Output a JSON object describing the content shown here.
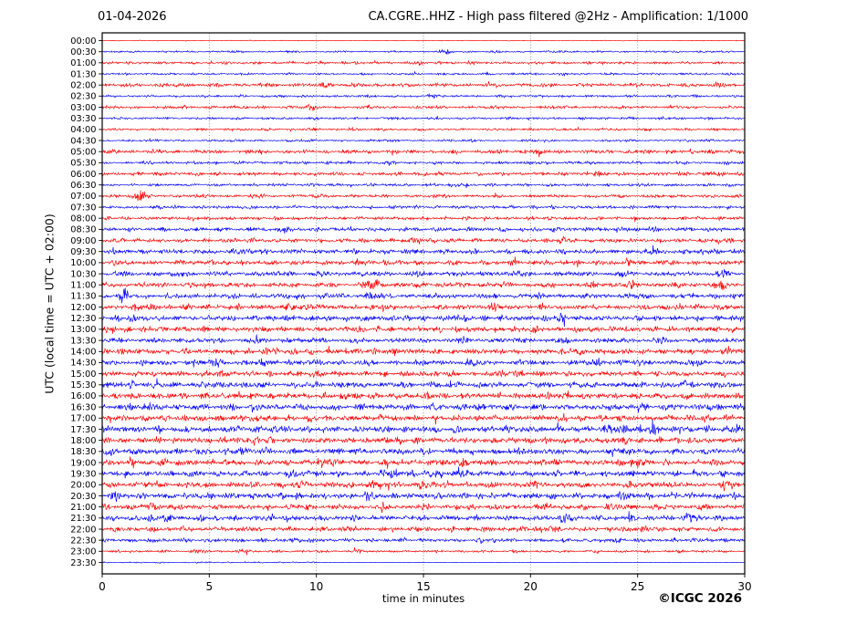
{
  "figure": {
    "date_title": "01-04-2026",
    "main_title": "CA.CGRE..HHZ - High pass filtered @2Hz - Amplification: 1/1000",
    "y_axis_label": "UTC (local time = UTC + 02:00)",
    "x_axis_label": "time in minutes",
    "copyright": "©ICGC 2026"
  },
  "chart_data": {
    "type": "line",
    "subtype": "helicorder-seismogram",
    "title": "CA.CGRE..HHZ - High pass filtered @2Hz - Amplification: 1/1000",
    "date": "01-04-2026",
    "xlabel": "time in minutes",
    "ylabel": "UTC (local time = UTC + 02:00)",
    "xlim": [
      0,
      30
    ],
    "x_ticks": [
      0,
      5,
      10,
      15,
      20,
      25,
      30
    ],
    "grid": "vertical dotted gridlines at 5-minute intervals",
    "legend": "none",
    "trace_colors": {
      "on_the_hour": "#ff0000",
      "on_the_half_hour": "#0000ff"
    },
    "row_count": 48,
    "minutes_per_row": 30,
    "waveform_note": "random band-limited seismic noise; base_amplitude_px = half-height of noise band in px; bursts = [center_minute, sigma_minutes, gain]",
    "traces": [
      {
        "label": "00:00",
        "color": "#ff0000",
        "amp": 0.25,
        "bursts": []
      },
      {
        "label": "00:30",
        "color": "#0000ff",
        "amp": 0.7,
        "bursts": [
          [
            16,
            0.3,
            2.5
          ],
          [
            21.5,
            0.2,
            2
          ]
        ]
      },
      {
        "label": "01:00",
        "color": "#ff0000",
        "amp": 1.0,
        "bursts": [
          [
            14.8,
            0.3,
            2.2
          ],
          [
            17.2,
            0.2,
            2
          ]
        ]
      },
      {
        "label": "01:30",
        "color": "#0000ff",
        "amp": 0.8,
        "bursts": [
          [
            21.5,
            0.3,
            2
          ]
        ]
      },
      {
        "label": "02:00",
        "color": "#ff0000",
        "amp": 1.4,
        "bursts": [
          [
            10.5,
            0.3,
            2
          ]
        ]
      },
      {
        "label": "02:30",
        "color": "#0000ff",
        "amp": 0.9,
        "bursts": [
          [
            15.3,
            0.15,
            3
          ],
          [
            12,
            0.3,
            1.8
          ]
        ]
      },
      {
        "label": "03:00",
        "color": "#ff0000",
        "amp": 1.1,
        "bursts": [
          [
            9.8,
            0.2,
            2.5
          ]
        ]
      },
      {
        "label": "03:30",
        "color": "#0000ff",
        "amp": 0.9,
        "bursts": []
      },
      {
        "label": "04:00",
        "color": "#ff0000",
        "amp": 0.9,
        "bursts": []
      },
      {
        "label": "04:30",
        "color": "#0000ff",
        "amp": 0.8,
        "bursts": []
      },
      {
        "label": "05:00",
        "color": "#ff0000",
        "amp": 1.4,
        "bursts": [
          [
            20,
            0.4,
            1.8
          ],
          [
            28.5,
            0.3,
            1.8
          ]
        ]
      },
      {
        "label": "05:30",
        "color": "#0000ff",
        "amp": 1.1,
        "bursts": [
          [
            23.5,
            0.3,
            1.8
          ]
        ]
      },
      {
        "label": "06:00",
        "color": "#ff0000",
        "amp": 1.4,
        "bursts": [
          [
            23,
            0.4,
            1.6
          ],
          [
            28.7,
            0.3,
            1.8
          ]
        ]
      },
      {
        "label": "06:30",
        "color": "#0000ff",
        "amp": 1.0,
        "bursts": [
          [
            16.5,
            0.3,
            2
          ],
          [
            25,
            0.2,
            1.8
          ]
        ]
      },
      {
        "label": "07:00",
        "color": "#ff0000",
        "amp": 1.2,
        "bursts": [
          [
            1.8,
            0.35,
            3
          ],
          [
            28,
            0.3,
            1.6
          ]
        ]
      },
      {
        "label": "07:30",
        "color": "#0000ff",
        "amp": 1.1,
        "bursts": [
          [
            2.8,
            0.25,
            2.2
          ],
          [
            14,
            0.3,
            1.8
          ]
        ]
      },
      {
        "label": "08:00",
        "color": "#ff0000",
        "amp": 1.2,
        "bursts": [
          [
            4.5,
            0.4,
            1.8
          ],
          [
            27.5,
            0.3,
            1.6
          ]
        ]
      },
      {
        "label": "08:30",
        "color": "#0000ff",
        "amp": 1.5,
        "bursts": [
          [
            8.5,
            0.4,
            1.6
          ],
          [
            25,
            0.4,
            1.6
          ]
        ]
      },
      {
        "label": "09:00",
        "color": "#ff0000",
        "amp": 1.5,
        "bursts": [
          [
            14.5,
            0.3,
            2
          ],
          [
            21.5,
            0.3,
            2
          ],
          [
            28.8,
            0.3,
            1.8
          ]
        ]
      },
      {
        "label": "09:30",
        "color": "#0000ff",
        "amp": 1.8,
        "bursts": [
          [
            6.8,
            0.4,
            1.8
          ],
          [
            25.5,
            0.4,
            1.7
          ]
        ]
      },
      {
        "label": "10:00",
        "color": "#ff0000",
        "amp": 1.8,
        "bursts": [
          [
            13,
            0.4,
            1.6
          ],
          [
            19,
            0.4,
            1.5
          ],
          [
            24.5,
            0.3,
            1.8
          ]
        ]
      },
      {
        "label": "10:30",
        "color": "#0000ff",
        "amp": 1.8,
        "bursts": [
          [
            14.5,
            0.4,
            1.6
          ],
          [
            19,
            0.5,
            1.7
          ],
          [
            29,
            0.3,
            1.8
          ]
        ]
      },
      {
        "label": "11:00",
        "color": "#ff0000",
        "amp": 1.8,
        "bursts": [
          [
            12.5,
            0.5,
            2.4
          ],
          [
            24.5,
            0.4,
            1.8
          ],
          [
            28.7,
            0.4,
            2
          ]
        ]
      },
      {
        "label": "11:30",
        "color": "#0000ff",
        "amp": 1.8,
        "bursts": [
          [
            1,
            0.25,
            2.8
          ],
          [
            12.5,
            0.4,
            1.8
          ],
          [
            28.5,
            0.4,
            1.8
          ]
        ]
      },
      {
        "label": "12:00",
        "color": "#ff0000",
        "amp": 2.0,
        "bursts": [
          [
            2,
            0.4,
            1.8
          ],
          [
            9,
            0.4,
            1.8
          ],
          [
            13,
            0.4,
            1.8
          ],
          [
            18.5,
            0.3,
            1.8
          ],
          [
            27,
            0.4,
            1.6
          ]
        ]
      },
      {
        "label": "12:30",
        "color": "#0000ff",
        "amp": 2.0,
        "bursts": [
          [
            1.5,
            0.4,
            1.8
          ],
          [
            16.5,
            0.4,
            1.8
          ],
          [
            21.5,
            0.4,
            1.8
          ]
        ]
      },
      {
        "label": "13:00",
        "color": "#ff0000",
        "amp": 2.0,
        "bursts": [
          [
            0.4,
            0.3,
            2
          ],
          [
            12,
            0.4,
            1.7
          ],
          [
            20,
            0.5,
            1.5
          ]
        ]
      },
      {
        "label": "13:30",
        "color": "#0000ff",
        "amp": 1.8,
        "bursts": [
          [
            9,
            0.4,
            1.6
          ],
          [
            17,
            0.4,
            1.6
          ],
          [
            26,
            0.3,
            1.7
          ]
        ]
      },
      {
        "label": "14:00",
        "color": "#ff0000",
        "amp": 2.0,
        "bursts": [
          [
            8,
            0.4,
            1.7
          ],
          [
            13.5,
            0.4,
            1.7
          ],
          [
            22,
            0.4,
            1.6
          ],
          [
            29.3,
            0.3,
            2
          ]
        ]
      },
      {
        "label": "14:30",
        "color": "#0000ff",
        "amp": 2.0,
        "bursts": [
          [
            5.5,
            0.4,
            1.8
          ],
          [
            7.5,
            0.3,
            1.8
          ],
          [
            23.5,
            0.4,
            1.6
          ]
        ]
      },
      {
        "label": "15:00",
        "color": "#ff0000",
        "amp": 2.0,
        "bursts": [
          [
            5.5,
            0.3,
            1.8
          ],
          [
            10,
            0.4,
            1.6
          ],
          [
            19,
            0.5,
            1.6
          ]
        ]
      },
      {
        "label": "15:30",
        "color": "#0000ff",
        "amp": 2.2,
        "bursts": [
          [
            1.5,
            0.4,
            1.8
          ],
          [
            6,
            0.4,
            1.6
          ],
          [
            27.5,
            0.4,
            1.7
          ]
        ]
      },
      {
        "label": "16:00",
        "color": "#ff0000",
        "amp": 2.2,
        "bursts": [
          [
            11.5,
            0.4,
            1.7
          ],
          [
            15,
            0.4,
            1.6
          ],
          [
            21,
            0.4,
            1.6
          ]
        ]
      },
      {
        "label": "16:30",
        "color": "#0000ff",
        "amp": 2.3,
        "bursts": [
          [
            2,
            0.4,
            1.7
          ],
          [
            17.5,
            0.5,
            1.7
          ],
          [
            25,
            0.4,
            1.6
          ]
        ]
      },
      {
        "label": "17:00",
        "color": "#ff0000",
        "amp": 2.2,
        "bursts": [
          [
            7,
            0.4,
            1.7
          ],
          [
            21.5,
            0.4,
            1.7
          ],
          [
            28,
            0.3,
            1.7
          ]
        ]
      },
      {
        "label": "17:30",
        "color": "#0000ff",
        "amp": 2.3,
        "bursts": [
          [
            16.5,
            0.4,
            1.7
          ],
          [
            24,
            0.4,
            2.2
          ],
          [
            25.5,
            0.3,
            2.8
          ],
          [
            29.5,
            0.3,
            2.2
          ]
        ]
      },
      {
        "label": "18:00",
        "color": "#ff0000",
        "amp": 2.2,
        "bursts": [
          [
            7,
            0.4,
            1.7
          ],
          [
            13.5,
            0.4,
            1.7
          ],
          [
            24.5,
            0.5,
            1.6
          ]
        ]
      },
      {
        "label": "18:30",
        "color": "#0000ff",
        "amp": 2.2,
        "bursts": [
          [
            6.5,
            0.4,
            1.8
          ],
          [
            11.5,
            0.4,
            1.7
          ],
          [
            20,
            0.4,
            1.6
          ],
          [
            24.5,
            0.4,
            1.8
          ]
        ]
      },
      {
        "label": "19:00",
        "color": "#ff0000",
        "amp": 2.2,
        "bursts": [
          [
            10.5,
            0.35,
            3
          ],
          [
            16.5,
            0.4,
            1.8
          ],
          [
            21,
            0.4,
            1.7
          ],
          [
            25,
            0.4,
            1.8
          ]
        ]
      },
      {
        "label": "19:30",
        "color": "#0000ff",
        "amp": 2.2,
        "bursts": [
          [
            9,
            0.4,
            1.8
          ],
          [
            13.5,
            0.4,
            2.4
          ],
          [
            15.5,
            0.4,
            2.2
          ],
          [
            17,
            0.3,
            2
          ]
        ]
      },
      {
        "label": "20:00",
        "color": "#ff0000",
        "amp": 2.2,
        "bursts": [
          [
            9.5,
            0.3,
            1.8
          ],
          [
            12.5,
            0.4,
            1.8
          ],
          [
            15,
            0.4,
            1.8
          ],
          [
            20,
            0.4,
            1.6
          ]
        ]
      },
      {
        "label": "20:30",
        "color": "#0000ff",
        "amp": 2.2,
        "bursts": [
          [
            0.5,
            0.3,
            2
          ],
          [
            12.5,
            0.4,
            1.7
          ],
          [
            15.5,
            0.4,
            1.7
          ],
          [
            24.5,
            0.4,
            1.8
          ]
        ]
      },
      {
        "label": "21:00",
        "color": "#ff0000",
        "amp": 2.0,
        "bursts": [
          [
            2.5,
            0.4,
            1.8
          ],
          [
            21,
            0.4,
            1.8
          ],
          [
            24,
            0.4,
            1.6
          ]
        ]
      },
      {
        "label": "21:30",
        "color": "#0000ff",
        "amp": 2.0,
        "bursts": [
          [
            2.5,
            0.4,
            1.8
          ],
          [
            21.5,
            0.4,
            1.8
          ],
          [
            24.5,
            0.3,
            2.2
          ],
          [
            27.5,
            0.4,
            1.8
          ]
        ]
      },
      {
        "label": "22:00",
        "color": "#ff0000",
        "amp": 1.8,
        "bursts": [
          [
            6,
            0.4,
            1.6
          ],
          [
            20.5,
            0.4,
            1.8
          ],
          [
            25,
            0.4,
            1.8
          ]
        ]
      },
      {
        "label": "22:30",
        "color": "#0000ff",
        "amp": 1.4,
        "bursts": [
          [
            9.5,
            0.3,
            1.8
          ],
          [
            18.5,
            0.4,
            1.6
          ],
          [
            24,
            0.4,
            1.8
          ]
        ]
      },
      {
        "label": "23:00",
        "color": "#ff0000",
        "amp": 0.9,
        "bursts": [
          [
            4.5,
            0.3,
            2.2
          ],
          [
            6.5,
            0.3,
            2
          ],
          [
            12,
            0.3,
            1.8
          ],
          [
            15,
            0.3,
            1.8
          ],
          [
            27,
            0.2,
            1.8
          ]
        ]
      },
      {
        "label": "23:30",
        "color": "#0000ff",
        "amp": 0.45,
        "quiet_after": 10,
        "bursts": [
          [
            4.7,
            0.3,
            2
          ]
        ]
      }
    ]
  },
  "style": {
    "trace_red": "#ff0000",
    "trace_blue": "#0000ff",
    "grid_color": "#777777",
    "axis_color": "#000000",
    "background": "#ffffff"
  }
}
